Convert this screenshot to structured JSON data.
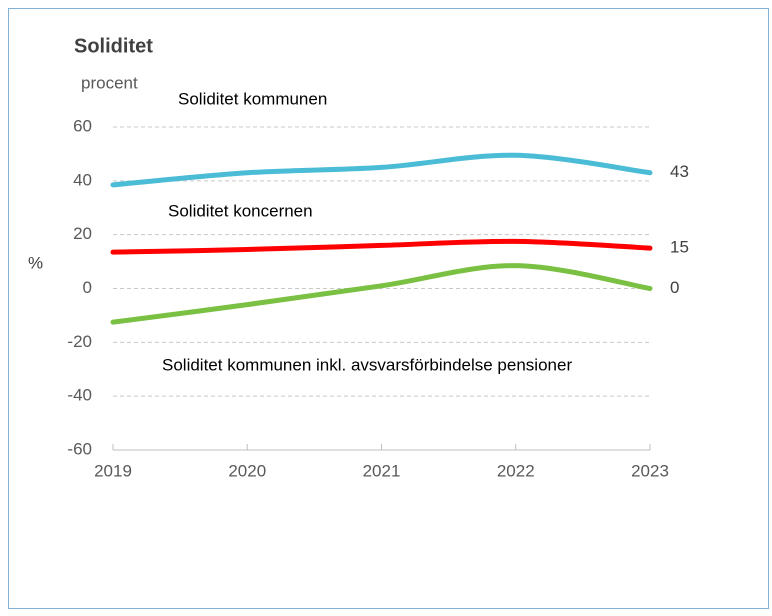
{
  "chart_data": {
    "type": "line",
    "title": "Soliditet",
    "subtitle": "procent",
    "ylabel": "%",
    "x": [
      2019,
      2020,
      2021,
      2022,
      2023
    ],
    "xlim": [
      2019,
      2023
    ],
    "xticks": [
      2019,
      2020,
      2021,
      2022,
      2023
    ],
    "ylim": [
      -60,
      60
    ],
    "yticks": [
      -60,
      -40,
      -20,
      0,
      20,
      40,
      60
    ],
    "grid": true,
    "series": [
      {
        "name": "Soliditet kommunen",
        "color": "#4bbcd6",
        "values": [
          38.5,
          43,
          45,
          49.5,
          43
        ]
      },
      {
        "name": "Soliditet koncernen",
        "color": "#ff0000",
        "values": [
          13.5,
          14.5,
          16,
          17.5,
          15
        ]
      },
      {
        "name": "Soliditet kommunen inkl. avsvarsförbindelse pensioner",
        "color": "#7ac143",
        "values": [
          -12.5,
          -6,
          1,
          8.5,
          0
        ]
      }
    ]
  }
}
